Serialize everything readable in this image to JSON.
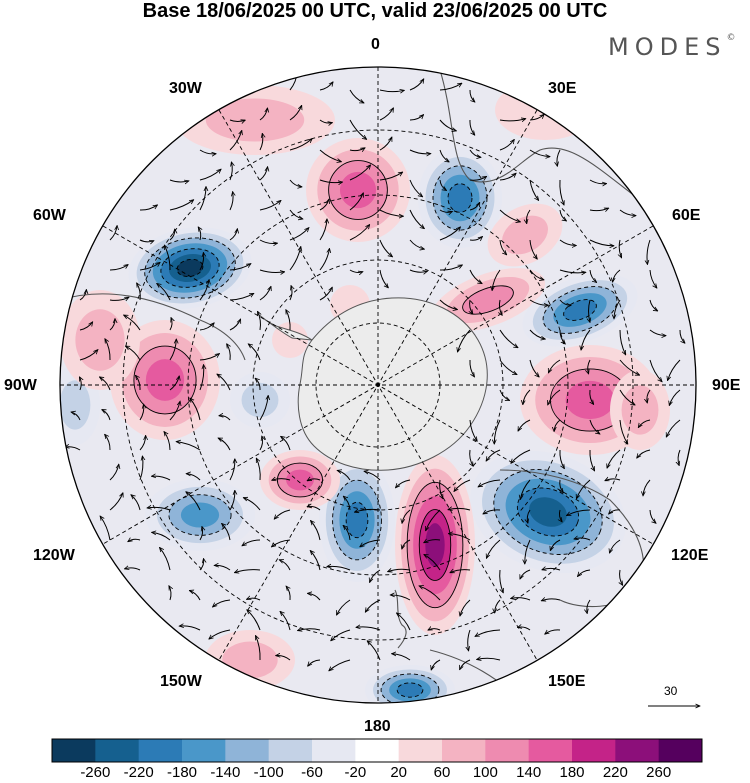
{
  "title": "Base 18/06/2025 00 UTC, valid 23/06/2025 00 UTC",
  "brand": "MODES",
  "brand_mark": "©",
  "longitude_labels": {
    "lon_0": "0",
    "lon_30e": "30E",
    "lon_60e": "60E",
    "lon_90e": "90E",
    "lon_120e": "120E",
    "lon_150e": "150E",
    "lon_180": "180",
    "lon_150w": "150W",
    "lon_120w": "120W",
    "lon_90w": "90W",
    "lon_60w": "60W",
    "lon_30w": "30W"
  },
  "vector_scale_label": "30",
  "colorbar": {
    "tick_labels": [
      "-260",
      "-220",
      "-180",
      "-140",
      "-100",
      "-60",
      "-20",
      "20",
      "60",
      "100",
      "140",
      "180",
      "220",
      "260"
    ],
    "colors": [
      "#0b3a5e",
      "#15608f",
      "#2c7bb6",
      "#4a97c9",
      "#8fb4d8",
      "#c4d2e6",
      "#e6e8f2",
      "#ffffff",
      "#f8d9dc",
      "#f4b3c2",
      "#ee8bb0",
      "#e55a9f",
      "#c42388",
      "#8c0f7a",
      "#55005e"
    ]
  },
  "map_colors": {
    "antarctica": "#ececec",
    "coast": "#555555",
    "grid": "#000000"
  }
}
